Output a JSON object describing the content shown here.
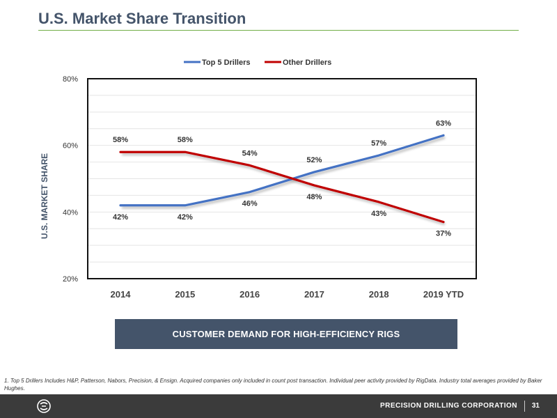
{
  "page": {
    "title": "U.S. Market Share Transition",
    "banner": "CUSTOMER DEMAND FOR HIGH-EFFICIENCY RIGS",
    "footnote": "1. Top 5 Drillers Includes H&P, Patterson, Nabors, Precision, & Ensign. Acquired companies only included in count post transaction. Individual peer activity provided by RigData. Industry total averages provided by Baker Hughes."
  },
  "footer": {
    "company": "PRECISION DRILLING CORPORATION",
    "page_number": "31",
    "logo_icon": "precision-drilling-logo-icon"
  },
  "colors": {
    "title": "#44546a",
    "rule": "#70ad47",
    "top5": "#4472c4",
    "other": "#c00000",
    "banner_bg": "#44546a",
    "footer_bg": "#3b3b3b"
  },
  "chart_data": {
    "type": "line",
    "categories": [
      "2014",
      "2015",
      "2016",
      "2017",
      "2018",
      "2019 YTD"
    ],
    "series": [
      {
        "name": "Top 5 Drillers",
        "values": [
          42,
          42,
          46,
          52,
          57,
          63
        ],
        "labels": [
          "42%",
          "42%",
          "46%",
          "52%",
          "57%",
          "63%"
        ]
      },
      {
        "name": "Other Drillers",
        "values": [
          58,
          58,
          54,
          48,
          43,
          37
        ],
        "labels": [
          "58%",
          "58%",
          "54%",
          "48%",
          "43%",
          "37%"
        ]
      }
    ],
    "ylabel": "U.S. MARKET SHARE",
    "ylim": [
      20,
      80
    ],
    "yticks": [
      20,
      40,
      60,
      80
    ],
    "ytick_labels": [
      "20%",
      "40%",
      "60%",
      "80%"
    ],
    "legend_position": "top-center",
    "grid": true
  }
}
